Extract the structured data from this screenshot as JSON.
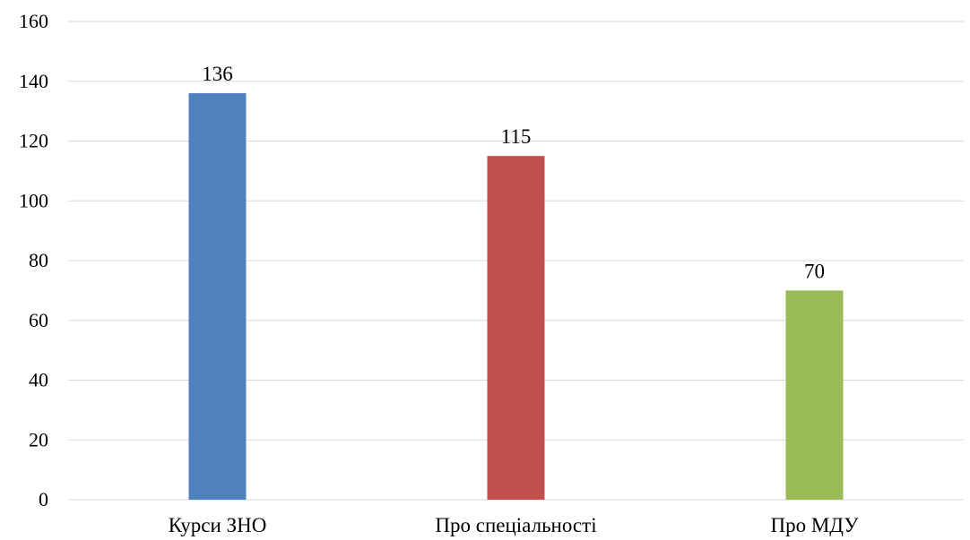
{
  "chart_data": {
    "type": "bar",
    "title": "",
    "xlabel": "",
    "ylabel": "",
    "categories": [
      "Курси ЗНО",
      "Про спеціальності",
      "Про МДУ"
    ],
    "values": [
      136,
      115,
      70
    ],
    "data_labels": [
      "136",
      "115",
      "70"
    ],
    "colors": [
      "#4f81bd",
      "#c0504d",
      "#9bbb59"
    ],
    "ylim": [
      0,
      160
    ],
    "yticks": [
      0,
      20,
      40,
      60,
      80,
      100,
      120,
      140,
      160
    ],
    "grid": true,
    "legend": "none"
  }
}
